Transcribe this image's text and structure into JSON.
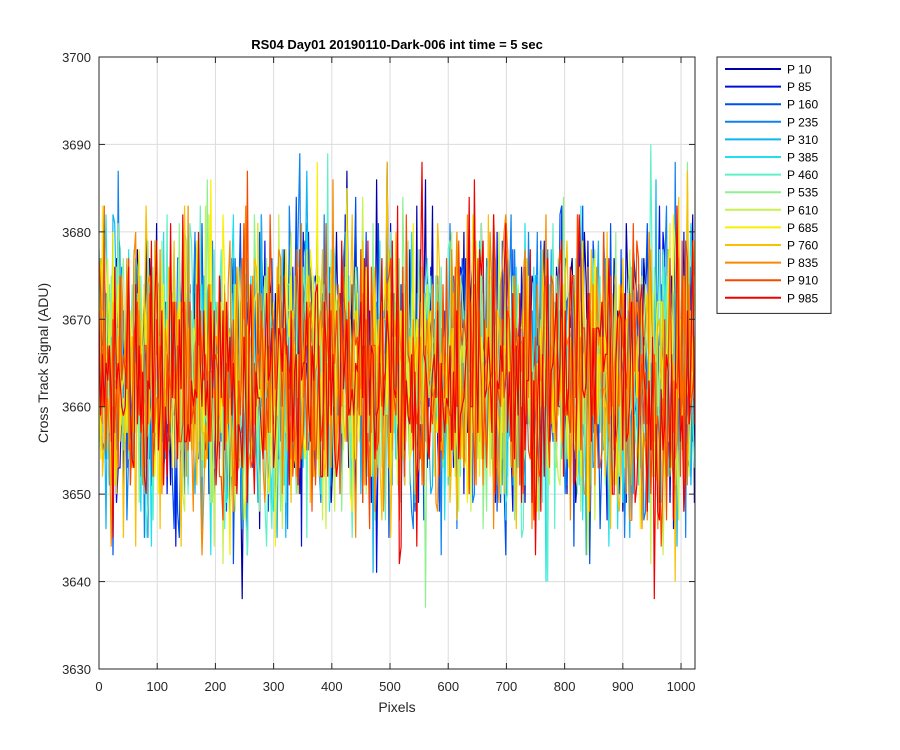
{
  "chart_data": {
    "type": "line",
    "title": "RS04 Day01 20190110-Dark-006 int time = 5 sec",
    "xlabel": "Pixels",
    "ylabel": "Cross Track Signal (ADU)",
    "xlim": [
      0,
      1024
    ],
    "ylim": [
      3630,
      3700
    ],
    "xticks": [
      0,
      100,
      200,
      300,
      400,
      500,
      600,
      700,
      800,
      900,
      1000
    ],
    "yticks": [
      3630,
      3640,
      3650,
      3660,
      3670,
      3680,
      3690,
      3700
    ],
    "grid": true,
    "legend_position": "outside-top-right",
    "noise_summary": {
      "mean": 3664,
      "typical_low": 3647,
      "typical_high": 3681,
      "min": 3636,
      "max": 3694
    },
    "series": [
      {
        "name": "P 10",
        "color": "#0000a8"
      },
      {
        "name": "P 85",
        "color": "#0010dc"
      },
      {
        "name": "P 160",
        "color": "#0050f0"
      },
      {
        "name": "P 235",
        "color": "#1080f0"
      },
      {
        "name": "P 310",
        "color": "#10b4f0"
      },
      {
        "name": "P 385",
        "color": "#20e0f0"
      },
      {
        "name": "P 460",
        "color": "#60f0c8"
      },
      {
        "name": "P 535",
        "color": "#90f090"
      },
      {
        "name": "P 610",
        "color": "#c8f050"
      },
      {
        "name": "P 685",
        "color": "#f8f000"
      },
      {
        "name": "P 760",
        "color": "#f8c000"
      },
      {
        "name": "P 835",
        "color": "#f88800"
      },
      {
        "name": "P 910",
        "color": "#f84800"
      },
      {
        "name": "P 985",
        "color": "#f00000"
      }
    ]
  }
}
